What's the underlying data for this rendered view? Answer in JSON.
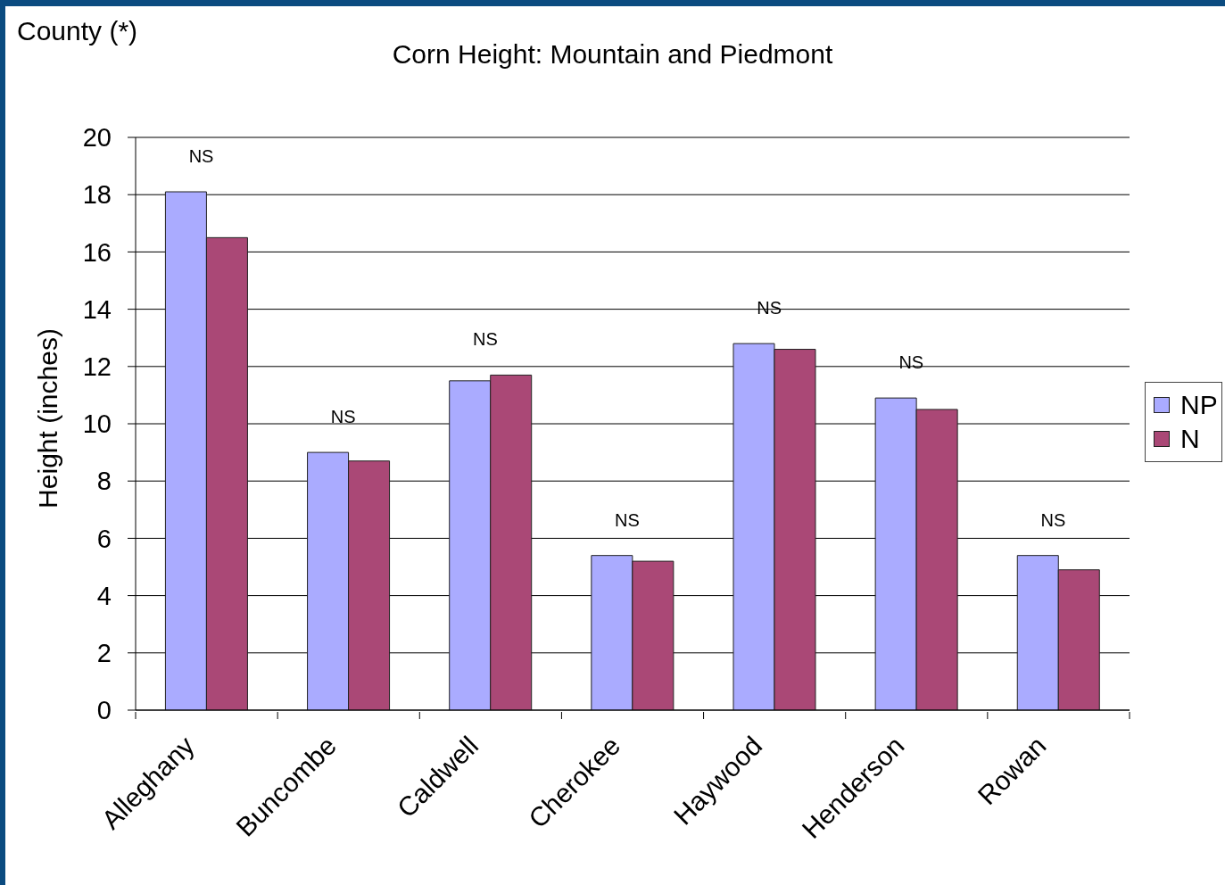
{
  "chart_data": {
    "type": "bar",
    "title": "Corn Height: Mountain and Piedmont",
    "ylabel": "Height (inches)",
    "categories": [
      "Alleghany",
      "Buncombe",
      "Caldwell",
      "Cherokee",
      "Haywood",
      "Henderson",
      "Rowan"
    ],
    "series": [
      {
        "name": "NP",
        "color": "#aaabff",
        "values": [
          18.1,
          9.0,
          11.5,
          5.4,
          12.8,
          10.9,
          5.4
        ]
      },
      {
        "name": "N",
        "color": "#aa4876",
        "values": [
          16.5,
          8.7,
          11.7,
          5.2,
          12.6,
          10.5,
          4.9
        ]
      }
    ],
    "ylim": [
      0,
      20
    ],
    "yticks": [
      0,
      2,
      4,
      6,
      8,
      10,
      12,
      14,
      16,
      18,
      20
    ],
    "grid": "y",
    "legend": "right",
    "annotations": [
      "County (*)",
      "NS",
      "NS",
      "NS",
      "NS",
      "NS",
      "NS",
      "NS"
    ]
  }
}
